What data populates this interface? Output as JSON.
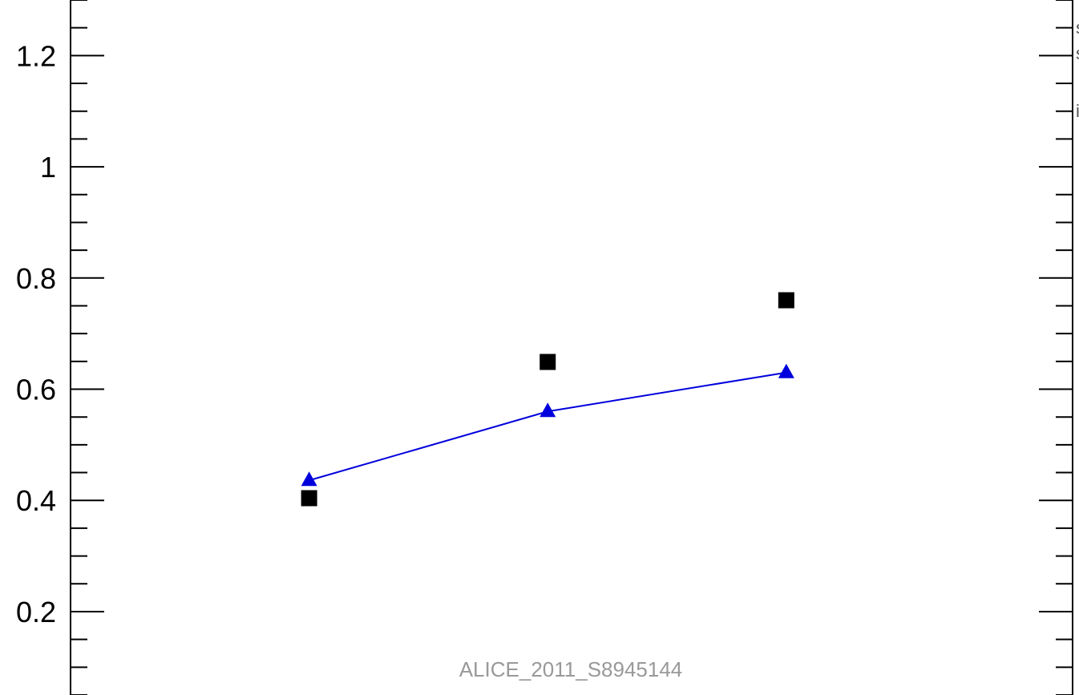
{
  "chart_data": {
    "type": "scatter",
    "x": [
      1,
      2,
      3
    ],
    "series": [
      {
        "values": [
          0.404,
          0.649,
          0.76
        ],
        "marker": "square",
        "color": "#000000",
        "line": false
      },
      {
        "values": [
          0.436,
          0.56,
          0.63
        ],
        "marker": "triangle",
        "color": "#0000dd",
        "line": true
      }
    ],
    "xlim": [
      0,
      4.2
    ],
    "ylim": [
      0.05,
      1.3
    ],
    "y_ticks": [
      0.2,
      0.4,
      0.6,
      0.8,
      1,
      1.2
    ],
    "y_tick_labels": [
      "0.2",
      "0.4",
      "0.6",
      "0.8",
      "1",
      "1.2"
    ],
    "y_minor_step": 0.05,
    "grid": false,
    "watermark": "ALICE_2011_S8945144"
  }
}
